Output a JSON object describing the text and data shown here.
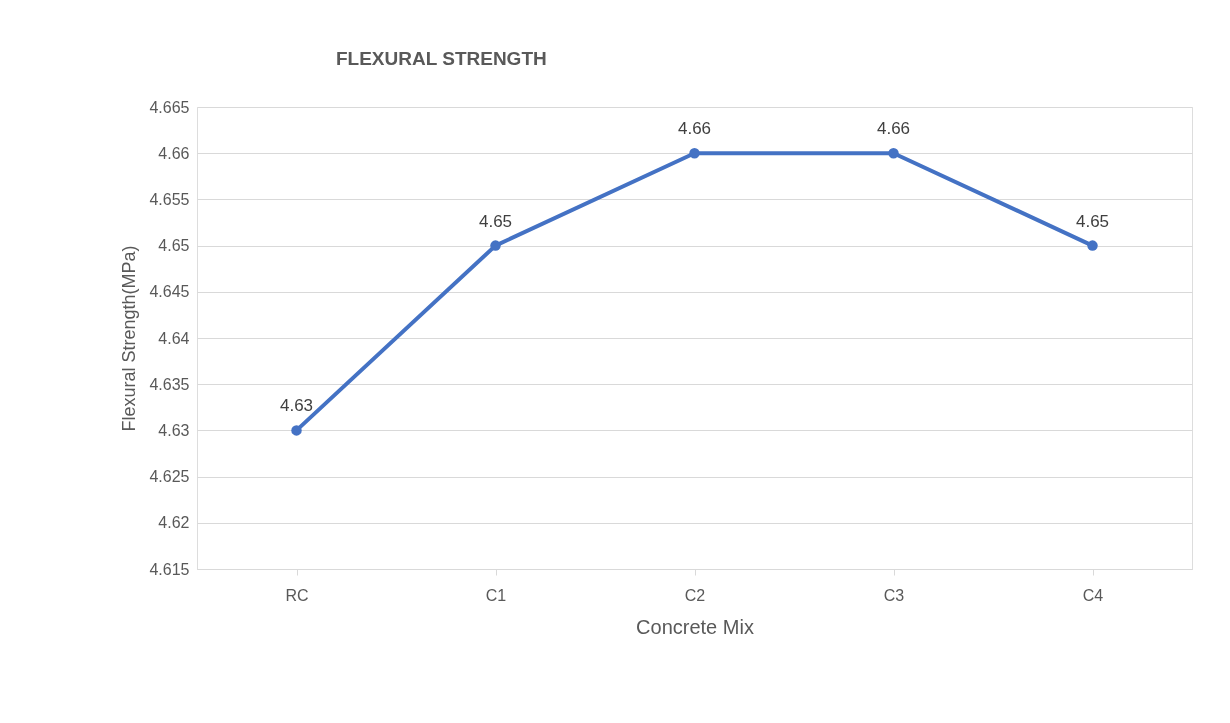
{
  "chart_data": {
    "type": "line",
    "title": "FLEXURAL STRENGTH",
    "xlabel": "Concrete Mix",
    "ylabel": "Flexural Strength(MPa)",
    "categories": [
      "RC",
      "C1",
      "C2",
      "C3",
      "C4"
    ],
    "series": [
      {
        "color": "#4472c4",
        "values": [
          4.63,
          4.65,
          4.66,
          4.66,
          4.65
        ]
      }
    ],
    "ylim": [
      4.615,
      4.665
    ],
    "yticks": [
      4.615,
      4.62,
      4.625,
      4.63,
      4.635,
      4.64,
      4.645,
      4.65,
      4.655,
      4.66,
      4.665
    ],
    "grid": "y",
    "marker": "circle",
    "line_style": "solid",
    "data_labels": true,
    "legend": false
  }
}
